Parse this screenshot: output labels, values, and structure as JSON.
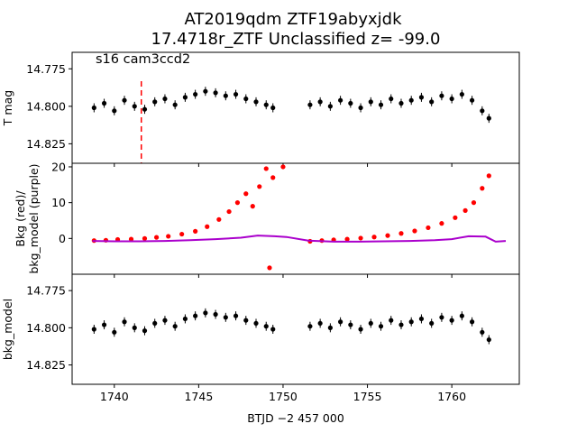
{
  "figure": {
    "title_line1": "AT2019qdm  ZTF19abyxjdk",
    "title_line2": "17.4718r_ZTF Unclassified z= -99.0"
  },
  "chart_data": [
    {
      "type": "scatter",
      "panel": "top",
      "ylabel": "T mag",
      "annotation": "s16 cam3ccd2",
      "marker_line_x": 1741.6,
      "marker_line_color": "#ff0000",
      "xlim": [
        1737.5,
        1764.0
      ],
      "ylim": [
        14.838,
        14.764
      ],
      "yticks": [
        14.775,
        14.8,
        14.825
      ],
      "ytick_labels": [
        "14.775",
        "14.800",
        "14.825"
      ],
      "series": [
        {
          "color": "#000000",
          "error_bars": true,
          "x": [
            1738.8,
            1739.4,
            1740.0,
            1740.6,
            1741.2,
            1741.8,
            1742.4,
            1743.0,
            1743.6,
            1744.2,
            1744.8,
            1745.4,
            1746.0,
            1746.6,
            1747.2,
            1747.8,
            1748.4,
            1749.0,
            1749.4,
            1751.6,
            1752.2,
            1752.8,
            1753.4,
            1754.0,
            1754.6,
            1755.2,
            1755.8,
            1756.4,
            1757.0,
            1757.6,
            1758.2,
            1758.8,
            1759.4,
            1760.0,
            1760.6,
            1761.2,
            1761.8,
            1762.2
          ],
          "y": [
            14.801,
            14.798,
            14.803,
            14.796,
            14.8,
            14.802,
            14.797,
            14.795,
            14.799,
            14.794,
            14.792,
            14.79,
            14.791,
            14.793,
            14.792,
            14.795,
            14.797,
            14.799,
            14.801,
            14.799,
            14.797,
            14.8,
            14.796,
            14.798,
            14.801,
            14.797,
            14.799,
            14.795,
            14.798,
            14.796,
            14.794,
            14.797,
            14.793,
            14.795,
            14.792,
            14.796,
            14.803,
            14.808
          ]
        }
      ]
    },
    {
      "type": "scatter",
      "panel": "middle",
      "ylabel": "Bkg (red)/\nbkg_model (purple)",
      "xlim": [
        1737.5,
        1764.0
      ],
      "ylim": [
        -10,
        21
      ],
      "yticks": [
        0,
        10,
        20
      ],
      "ytick_labels": [
        "0",
        "10",
        "20"
      ],
      "series": [
        {
          "name": "Bkg",
          "color": "#ff0000",
          "x": [
            1738.8,
            1739.5,
            1740.2,
            1741.0,
            1741.8,
            1742.5,
            1743.2,
            1744.0,
            1744.8,
            1745.5,
            1746.2,
            1746.8,
            1747.3,
            1747.8,
            1748.2,
            1748.6,
            1749.0,
            1749.4,
            1749.2,
            1750.0,
            1751.6,
            1752.3,
            1753.0,
            1753.8,
            1754.6,
            1755.4,
            1756.2,
            1757.0,
            1757.8,
            1758.6,
            1759.4,
            1760.2,
            1760.8,
            1761.3,
            1761.8,
            1762.2
          ],
          "y": [
            -0.6,
            -0.5,
            -0.3,
            -0.2,
            0.0,
            0.3,
            0.6,
            1.2,
            2.0,
            3.3,
            5.3,
            7.5,
            10.0,
            12.5,
            9.0,
            14.5,
            19.5,
            17.0,
            -8.2,
            20.0,
            -0.8,
            -0.6,
            -0.4,
            -0.2,
            0.1,
            0.4,
            0.8,
            1.4,
            2.1,
            3.0,
            4.2,
            5.8,
            7.8,
            10.0,
            14.0,
            17.5
          ]
        },
        {
          "name": "bkg_model",
          "color": "#aa00cc",
          "line": true,
          "x": [
            1738.7,
            1740.0,
            1741.5,
            1743.0,
            1744.5,
            1746.0,
            1747.5,
            1748.5,
            1749.5,
            1750.2,
            1751.5,
            1753.0,
            1754.5,
            1756.0,
            1757.5,
            1759.0,
            1760.0,
            1761.0,
            1762.0,
            1762.6,
            1763.2
          ],
          "y": [
            -0.7,
            -0.8,
            -0.8,
            -0.7,
            -0.5,
            -0.2,
            0.2,
            0.8,
            0.6,
            0.4,
            -0.6,
            -0.9,
            -0.9,
            -0.8,
            -0.7,
            -0.5,
            -0.2,
            0.6,
            0.5,
            -0.9,
            -0.7
          ]
        }
      ]
    },
    {
      "type": "scatter",
      "panel": "bottom",
      "ylabel": "bkg_model",
      "xlabel": "BTJD −2 457 000",
      "xlim": [
        1737.5,
        1764.0
      ],
      "xticks": [
        1740,
        1745,
        1750,
        1755,
        1760
      ],
      "xtick_labels": [
        "1740",
        "1745",
        "1750",
        "1755",
        "1760"
      ],
      "ylim": [
        14.838,
        14.764
      ],
      "yticks": [
        14.775,
        14.8,
        14.825
      ],
      "ytick_labels": [
        "14.775",
        "14.800",
        "14.825"
      ],
      "series": [
        {
          "color": "#000000",
          "error_bars": true,
          "x": [
            1738.8,
            1739.4,
            1740.0,
            1740.6,
            1741.2,
            1741.8,
            1742.4,
            1743.0,
            1743.6,
            1744.2,
            1744.8,
            1745.4,
            1746.0,
            1746.6,
            1747.2,
            1747.8,
            1748.4,
            1749.0,
            1749.4,
            1751.6,
            1752.2,
            1752.8,
            1753.4,
            1754.0,
            1754.6,
            1755.2,
            1755.8,
            1756.4,
            1757.0,
            1757.6,
            1758.2,
            1758.8,
            1759.4,
            1760.0,
            1760.6,
            1761.2,
            1761.8,
            1762.2
          ],
          "y": [
            14.801,
            14.798,
            14.803,
            14.796,
            14.8,
            14.802,
            14.797,
            14.795,
            14.799,
            14.794,
            14.792,
            14.79,
            14.791,
            14.793,
            14.792,
            14.795,
            14.797,
            14.799,
            14.801,
            14.799,
            14.797,
            14.8,
            14.796,
            14.798,
            14.801,
            14.797,
            14.799,
            14.795,
            14.798,
            14.796,
            14.794,
            14.797,
            14.793,
            14.795,
            14.792,
            14.796,
            14.803,
            14.808
          ]
        }
      ]
    }
  ]
}
